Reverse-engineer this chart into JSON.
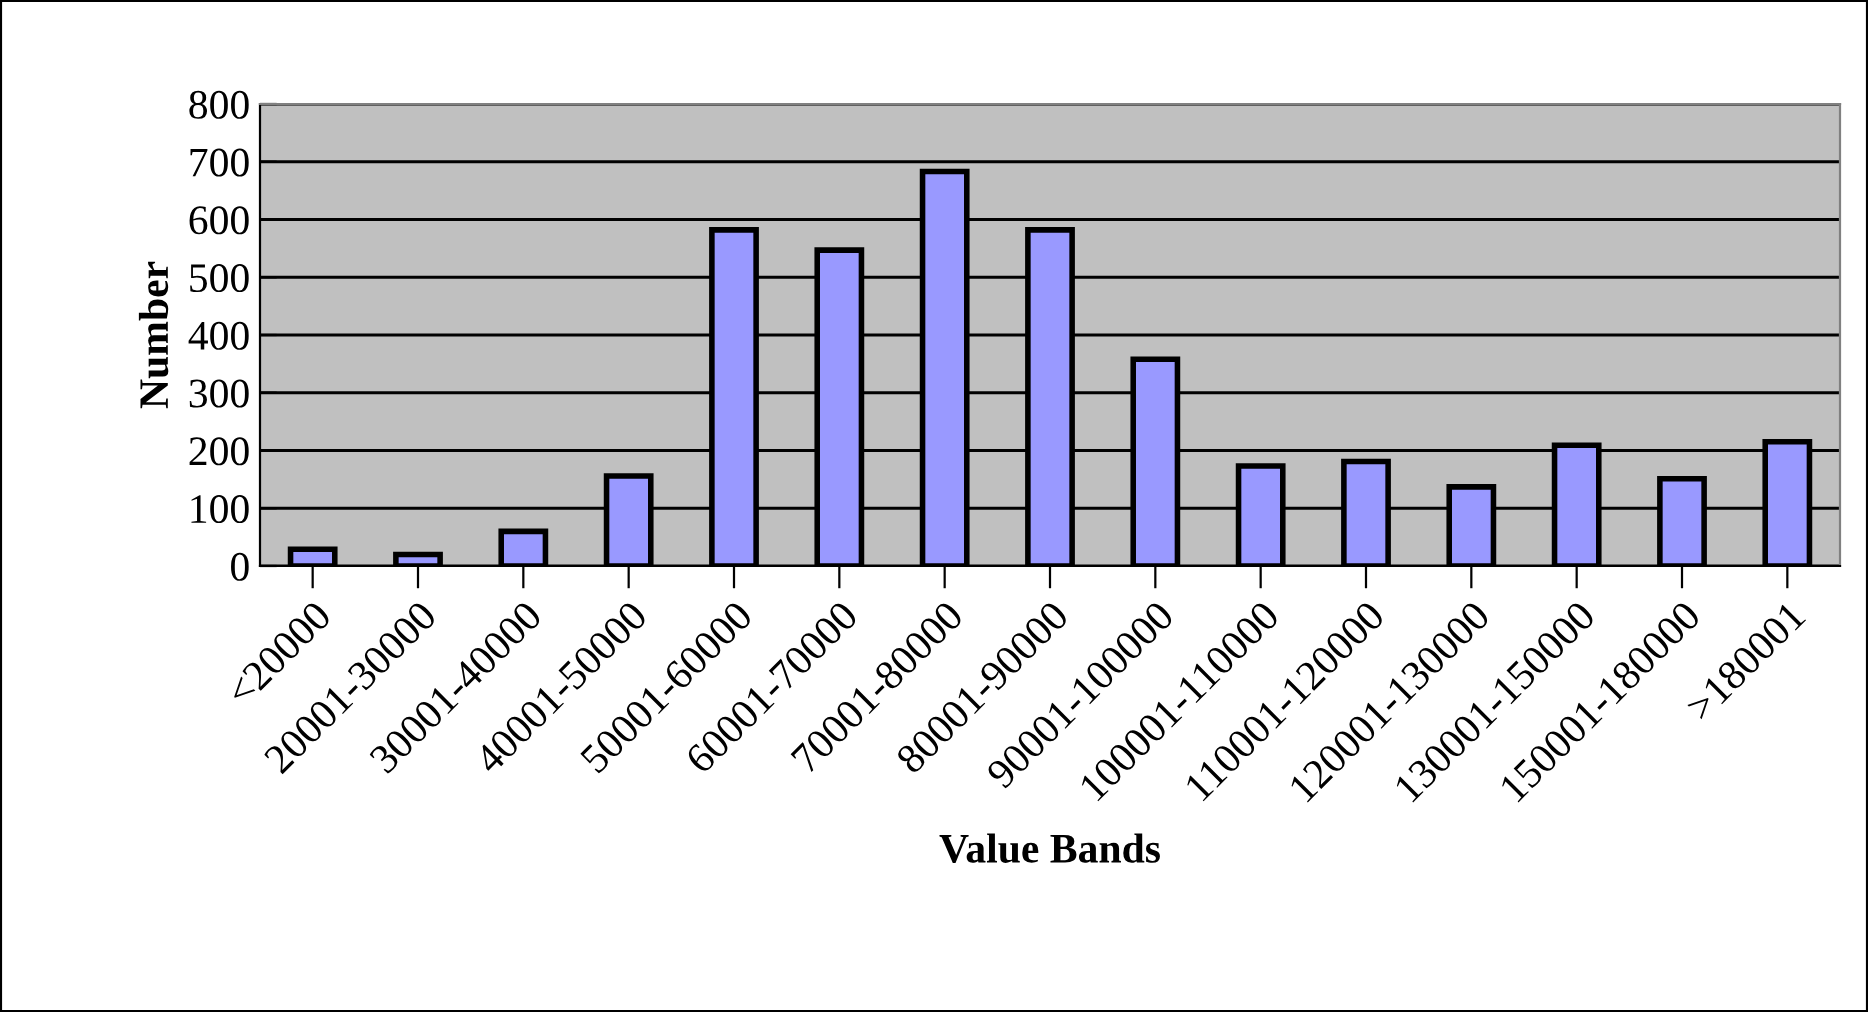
{
  "chart_data": {
    "type": "bar",
    "xlabel": "Value Bands",
    "ylabel": "Number",
    "categories": [
      "<20000",
      "20001-30000",
      "30001-40000",
      "40001-50000",
      "50001-60000",
      "60001-70000",
      "70001-80000",
      "80001-90000",
      "90001-100000",
      "100001-110000",
      "110001-120000",
      "120001-130000",
      "130001-150000",
      "150001-180000",
      ">180001"
    ],
    "values": [
      29,
      20,
      60,
      156,
      582,
      547,
      683,
      582,
      358,
      173,
      181,
      137,
      209,
      151,
      215
    ],
    "color": "#9999ff",
    "ylim": [
      0,
      800
    ],
    "yticks": [
      0,
      100,
      200,
      300,
      400,
      500,
      600,
      700,
      800
    ],
    "grid": "y"
  }
}
